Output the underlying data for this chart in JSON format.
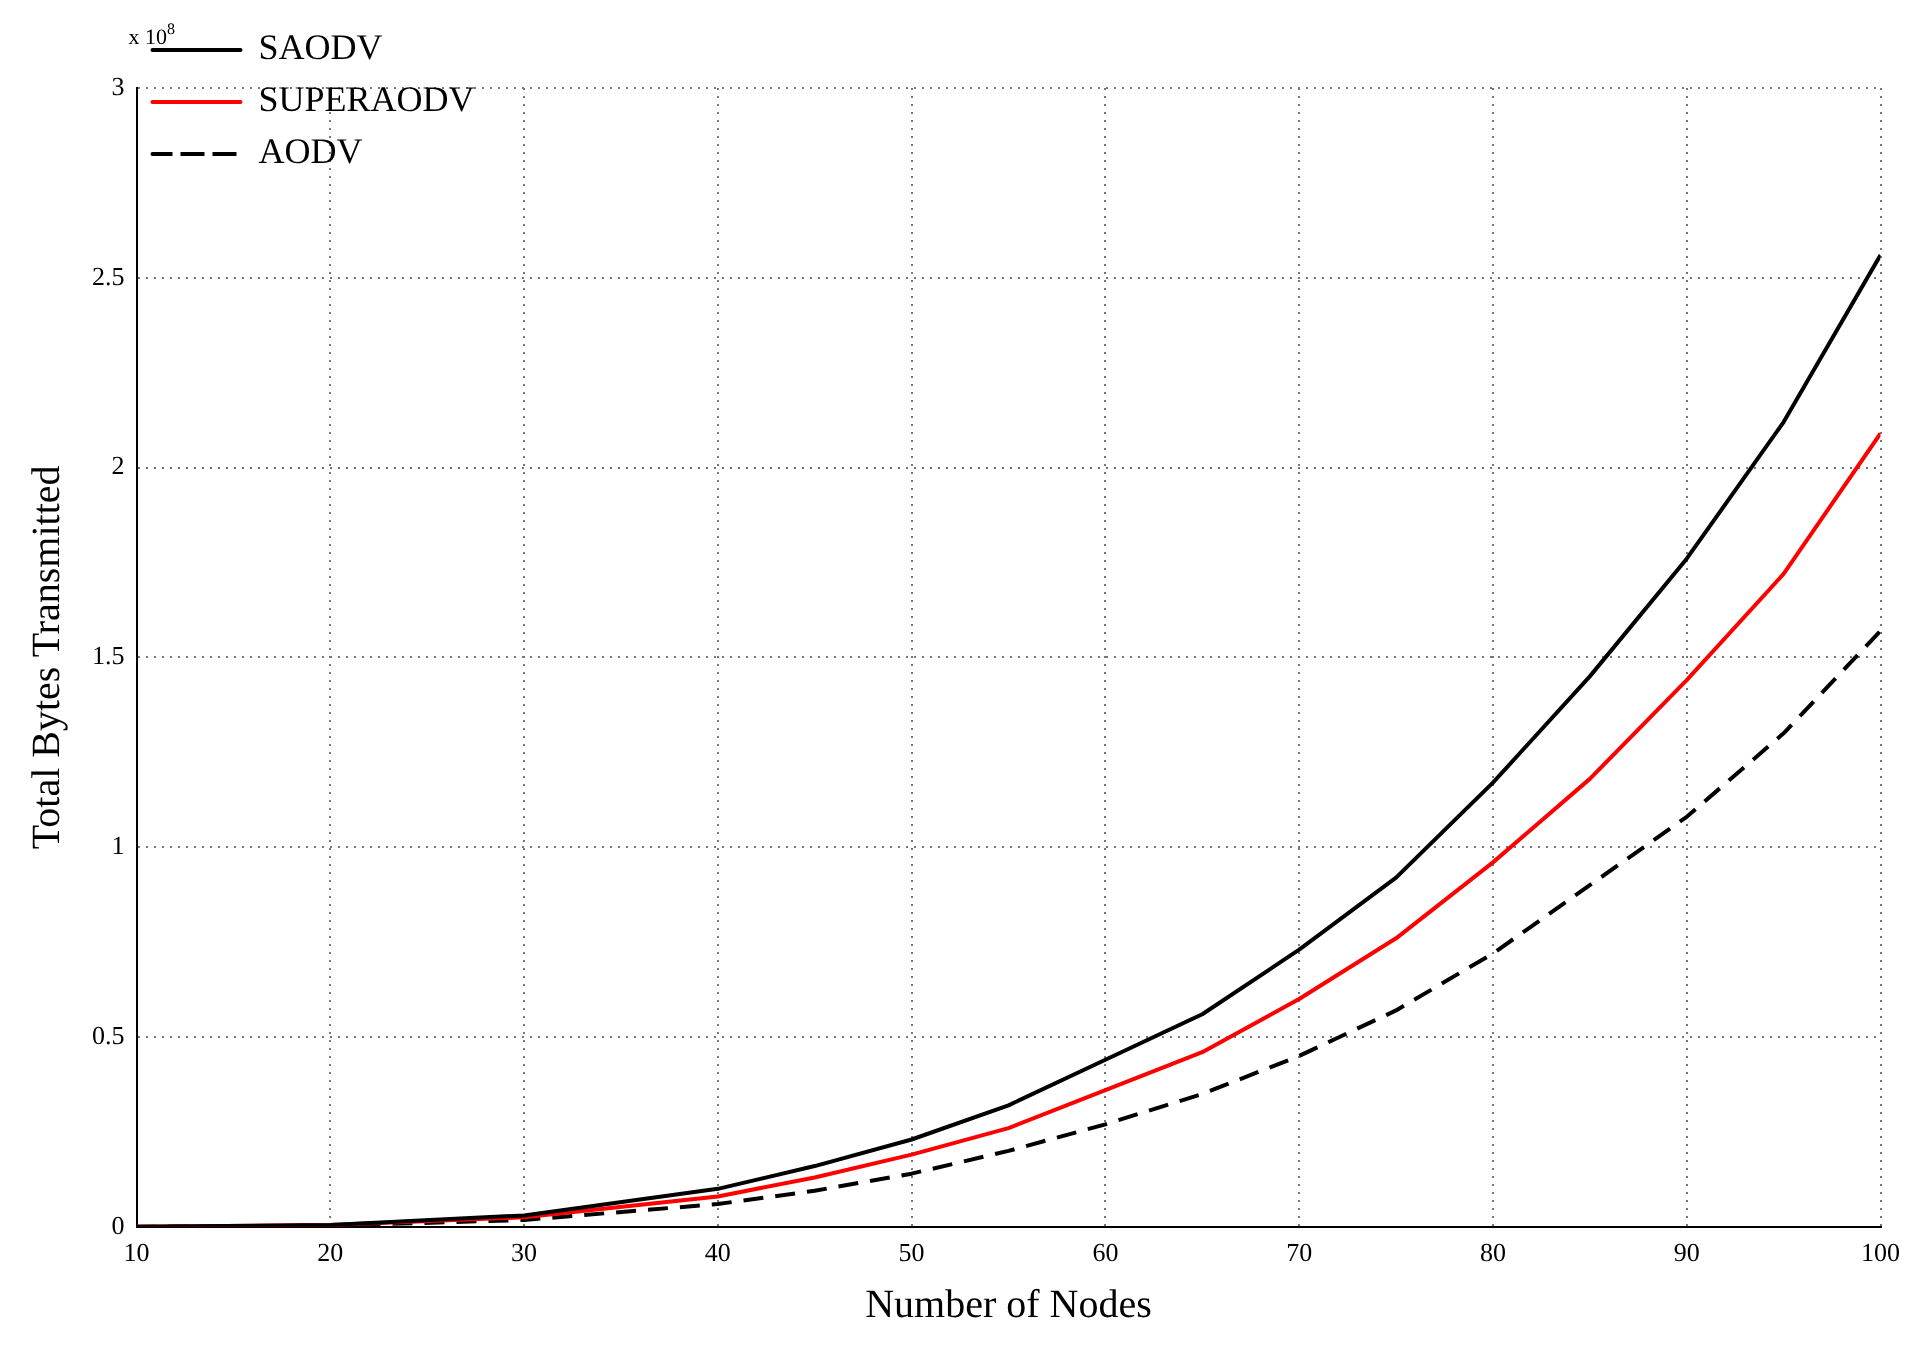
{
  "chart_data": {
    "type": "line",
    "xlabel": "Number of Nodes",
    "ylabel": "Total Bytes Transmitted",
    "annotations": [
      "x 10$^{8}$"
    ],
    "x": [
      10,
      20,
      30,
      40,
      45,
      50,
      55,
      60,
      65,
      70,
      75,
      80,
      85,
      90,
      95,
      100
    ],
    "xlim": [
      10,
      100
    ],
    "xticks": [
      10,
      20,
      30,
      40,
      50,
      60,
      70,
      80,
      90,
      100
    ],
    "ylim": [
      0,
      3
    ],
    "yticks": [
      0,
      0.5,
      1,
      1.5,
      2,
      2.5,
      3
    ],
    "grid": true,
    "legend": "top left",
    "marker": "none",
    "series": [
      {
        "name": "SAODV",
        "color": "#000000",
        "line_style": "solid",
        "values": [
          0,
          0.005,
          0.03,
          0.1,
          0.16,
          0.23,
          0.32,
          0.44,
          0.56,
          0.73,
          0.92,
          1.17,
          1.45,
          1.76,
          2.12,
          2.56
        ]
      },
      {
        "name": "SUPERAODV",
        "color": "#ff0000",
        "line_style": "solid",
        "values": [
          0,
          0.005,
          0.025,
          0.08,
          0.13,
          0.19,
          0.26,
          0.36,
          0.46,
          0.6,
          0.76,
          0.96,
          1.18,
          1.44,
          1.72,
          2.09
        ]
      },
      {
        "name": "AODV",
        "color": "#000000",
        "line_style": "dashed",
        "values": [
          0,
          0.003,
          0.018,
          0.06,
          0.095,
          0.14,
          0.2,
          0.27,
          0.35,
          0.45,
          0.57,
          0.72,
          0.9,
          1.08,
          1.3,
          1.57
        ]
      }
    ]
  }
}
